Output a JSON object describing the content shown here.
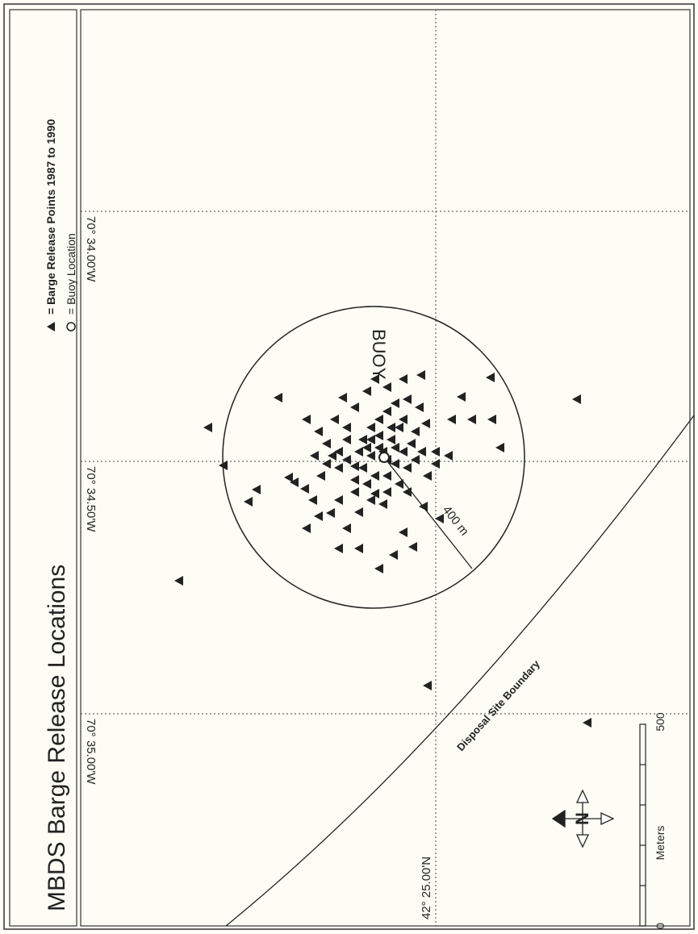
{
  "title": "MBDS Barge Release Locations",
  "legend": [
    "= Barge Release Points 1987 to 1990",
    "= Buoy Location"
  ],
  "labels": {
    "lon": [
      "70° 34.00'W",
      "70° 34.50'W",
      "70° 35.00'W"
    ],
    "lat": "42° 25.00'N",
    "buoy": "BUOY",
    "radius": "400 m",
    "boundary": "Disposal Site Boundary"
  },
  "scale": {
    "start": "0",
    "end": "500",
    "unit": "Meters"
  }
}
